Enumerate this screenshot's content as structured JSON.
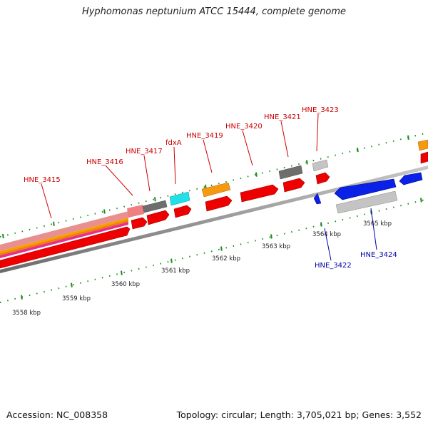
{
  "title": "Hyphomonas neptunium ATCC 15444, complete genome",
  "footer": {
    "accession": "Accession: NC_008358",
    "summary": "Topology: circular; Length: 3,705,021 bp; Genes: 3,552"
  },
  "colors": {
    "forward_gene": "#ff0000",
    "reverse_gene": "#0000ee",
    "forward_label": "#cc0000",
    "reverse_label": "#0000aa",
    "ticks": "#1e8c1e",
    "backbone": "#888888"
  },
  "scale_labels": [
    "3558 kbp",
    "3559 kbp",
    "3560 kbp",
    "3561 kbp",
    "3562 kbp",
    "3563 kbp",
    "3564 kbp",
    "3565 kbp"
  ],
  "gene_labels": [
    {
      "text": "HNE_3415",
      "strand": "forward"
    },
    {
      "text": "HNE_3416",
      "strand": "forward"
    },
    {
      "text": "HNE_3417",
      "strand": "forward"
    },
    {
      "text": "fdxA",
      "strand": "forward"
    },
    {
      "text": "HNE_3419",
      "strand": "forward"
    },
    {
      "text": "HNE_3420",
      "strand": "forward"
    },
    {
      "text": "HNE_3421",
      "strand": "forward"
    },
    {
      "text": "HNE_3423",
      "strand": "forward"
    },
    {
      "text": "HNE_3422",
      "strand": "reverse"
    },
    {
      "text": "HNE_3424",
      "strand": "reverse"
    }
  ]
}
